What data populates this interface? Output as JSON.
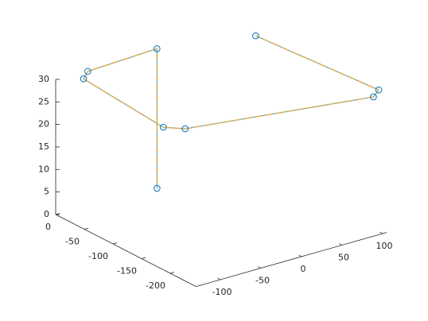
{
  "chart_data": {
    "type": "line3d",
    "xlim": [
      -130,
      105
    ],
    "ylim": [
      -245,
      0
    ],
    "zlim": [
      0,
      30
    ],
    "xticks": [
      -100,
      -50,
      0,
      50,
      100
    ],
    "yticks": [
      0,
      -50,
      -100,
      -150,
      -200
    ],
    "zticks": [
      0,
      5,
      10,
      15,
      20,
      25,
      30
    ],
    "series": [
      {
        "line_color": "#f2a93b",
        "marker_color": "#0072bd",
        "x": [
          -44,
          -44,
          -106,
          -114,
          -49,
          -34,
          95,
          110,
          96
        ],
        "y": [
          -55,
          -55,
          -22,
          -26,
          -73,
          -90,
          -236,
          -224,
          -29
        ],
        "z": [
          5,
          36,
          32,
          31,
          20,
          20,
          30,
          30,
          30
        ]
      }
    ]
  }
}
